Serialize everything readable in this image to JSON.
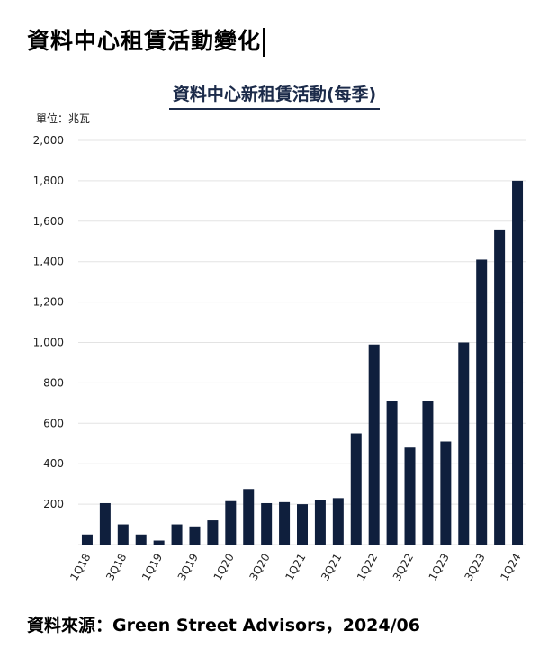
{
  "page": {
    "heading": "資料中心租賃活動變化",
    "source": "資料來源：Green Street Advisors，2024/06"
  },
  "colors": {
    "bar": "#0f1f3d",
    "title": "#1c2b4a",
    "grid": "#e3e3e3"
  },
  "chart_data": {
    "type": "bar",
    "title": "資料中心新租賃活動(每季)",
    "unit_label": "單位：兆瓦",
    "ylim": [
      0,
      2000
    ],
    "yticks": [
      "-",
      "200",
      "400",
      "600",
      "800",
      "1,000",
      "1,200",
      "1,400",
      "1,600",
      "1,800",
      "2,000"
    ],
    "ytick_values": [
      0,
      200,
      400,
      600,
      800,
      1000,
      1200,
      1400,
      1600,
      1800,
      2000
    ],
    "grid": true,
    "categories": [
      "1Q18",
      "2Q18",
      "3Q18",
      "4Q18",
      "1Q19",
      "2Q19",
      "3Q19",
      "4Q19",
      "1Q20",
      "2Q20",
      "3Q20",
      "4Q20",
      "1Q21",
      "2Q21",
      "3Q21",
      "4Q21",
      "1Q22",
      "2Q22",
      "3Q22",
      "4Q22",
      "1Q23",
      "2Q23",
      "3Q23",
      "4Q23",
      "1Q24"
    ],
    "x_tick_labels": [
      "1Q18",
      "",
      "3Q18",
      "",
      "1Q19",
      "",
      "3Q19",
      "",
      "1Q20",
      "",
      "3Q20",
      "",
      "1Q21",
      "",
      "3Q21",
      "",
      "1Q22",
      "",
      "3Q22",
      "",
      "1Q23",
      "",
      "3Q23",
      "",
      "1Q24"
    ],
    "values": [
      50,
      205,
      100,
      50,
      20,
      100,
      90,
      120,
      215,
      275,
      205,
      210,
      200,
      220,
      230,
      550,
      990,
      710,
      480,
      710,
      510,
      1000,
      1410,
      1555,
      1800
    ]
  }
}
